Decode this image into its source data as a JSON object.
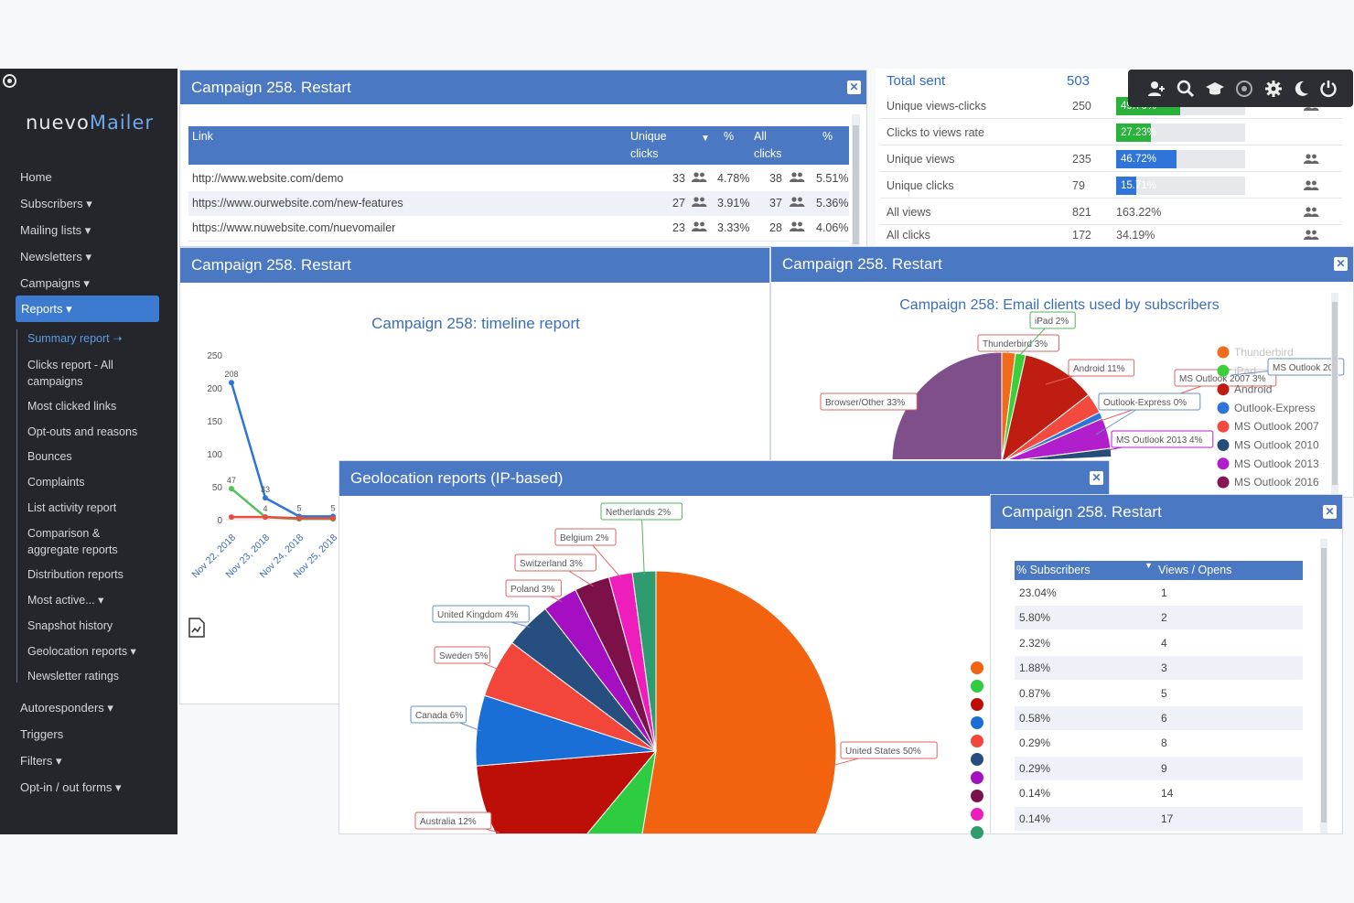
{
  "sidebar": {
    "logo_left": "nuevo",
    "logo_right": "Mailer",
    "items": [
      {
        "label": "Home"
      },
      {
        "label": "Subscribers ▾"
      },
      {
        "label": "Mailing lists ▾"
      },
      {
        "label": "Newsletters ▾"
      },
      {
        "label": "Campaigns ▾"
      }
    ],
    "reports_label": "Reports ▾",
    "subitems": [
      {
        "label": "Summary report ➝"
      },
      {
        "label": "Clicks report - All"
      },
      {
        "label": "campaigns"
      },
      {
        "label": "Most clicked links"
      },
      {
        "label": "Opt-outs and reasons"
      },
      {
        "label": "Bounces"
      },
      {
        "label": "Complaints"
      },
      {
        "label": "List activity report"
      },
      {
        "label": "Comparison &"
      },
      {
        "label": "aggregate reports"
      },
      {
        "label": "Distribution reports"
      },
      {
        "label": "Most active... ▾"
      },
      {
        "label": "Snapshot history"
      },
      {
        "label": "Geolocation reports ▾"
      },
      {
        "label": "Newsletter ratings"
      }
    ],
    "bottom_items": [
      {
        "label": "Autoresponders ▾"
      },
      {
        "label": "Triggers"
      },
      {
        "label": "Filters ▾"
      },
      {
        "label": "Opt-in / out forms ▾"
      }
    ]
  },
  "panel_links": {
    "title": "Campaign 258. Restart",
    "headers": {
      "link": "Link",
      "unique1": "Unique",
      "unique2": "clicks",
      "pct": "%",
      "all1": "All",
      "all2": "clicks",
      "pct2": "%"
    },
    "rows": [
      {
        "link": "http://www.website.com/demo",
        "unique": "33",
        "pct": "4.78%",
        "all": "38",
        "pct2": "5.51%"
      },
      {
        "link": "https://www.ourwebsite.com/new-features",
        "unique": "27",
        "pct": "3.91%",
        "all": "37",
        "pct2": "5.36%"
      },
      {
        "link": "https://www.nuwebsite.com/nuevomailer",
        "unique": "23",
        "pct": "3.33%",
        "all": "28",
        "pct2": "4.06%"
      }
    ]
  },
  "stats": {
    "total_label": "Total sent",
    "total_value": "503",
    "rows": [
      {
        "label": "Unique views-clicks",
        "value": "250",
        "bar": "49.70%",
        "fill": 0.497,
        "color": "#2ab33a"
      },
      {
        "label": "Clicks to views rate",
        "value": "",
        "bar": "27.23%",
        "fill": 0.2723,
        "color": "#2ab33a"
      },
      {
        "label": "Unique views",
        "value": "235",
        "bar": "46.72%",
        "fill": 0.4672,
        "color": "#2f74d8"
      },
      {
        "label": "Unique clicks",
        "value": "79",
        "bar": "15.71%",
        "fill": 0.1571,
        "color": "#2f74d8"
      },
      {
        "label": "All views",
        "value": "821",
        "text": "163.22%"
      },
      {
        "label": "All clicks",
        "value": "172",
        "text": "34.19%"
      }
    ]
  },
  "panel_timeline": {
    "title": "Campaign 258. Restart",
    "chart_title": "Campaign 258: timeline report"
  },
  "panel_clients": {
    "title": "Campaign 258. Restart",
    "chart_title": "Campaign 258: Email clients used by subscribers"
  },
  "panel_geo": {
    "title": "Geolocation reports (IP-based)"
  },
  "panel_dist": {
    "title": "Campaign 258. Restart",
    "col1": "% Subscribers",
    "col2": "Views / Opens",
    "rows": [
      {
        "a": "23.04%",
        "b": "1"
      },
      {
        "a": "5.80%",
        "b": "2"
      },
      {
        "a": "2.32%",
        "b": "4"
      },
      {
        "a": "1.88%",
        "b": "3"
      },
      {
        "a": "0.87%",
        "b": "5"
      },
      {
        "a": "0.58%",
        "b": "6"
      },
      {
        "a": "0.29%",
        "b": "8"
      },
      {
        "a": "0.29%",
        "b": "9"
      },
      {
        "a": "0.14%",
        "b": "14"
      },
      {
        "a": "0.14%",
        "b": "17"
      }
    ]
  },
  "chart_data": [
    {
      "type": "line",
      "title": "Campaign 258: timeline report",
      "categories": [
        "Nov 22, 2018",
        "Nov 23, 2018",
        "Nov 24, 2018",
        "Nov 25, 2018"
      ],
      "ylim": [
        0,
        250
      ],
      "yticks": [
        0,
        50,
        100,
        150,
        200,
        250
      ],
      "series": [
        {
          "values": [
            208,
            33,
            5,
            5
          ],
          "color": "#2f74d8",
          "labels": [
            "208",
            "33",
            "5",
            "5"
          ]
        },
        {
          "values": [
            47,
            4,
            1,
            1
          ],
          "color": "#53c25c",
          "labels": [
            "47",
            "4",
            "",
            ""
          ]
        },
        {
          "values": [
            4,
            4,
            2,
            2
          ],
          "color": "#e74c3c",
          "labels": [
            "",
            "",
            "",
            ""
          ]
        }
      ]
    },
    {
      "type": "pie",
      "title": "Campaign 258: Email clients used by subscribers",
      "slices": [
        {
          "label": "Browser/Other 33%",
          "value": 33,
          "color": "#7e4f8a"
        },
        {
          "label": "Thunderbird 3%",
          "value": 3,
          "color": "#f06b1a"
        },
        {
          "label": "iPad 2%",
          "value": 2,
          "color": "#3ccf3c"
        },
        {
          "label": "Android 11%",
          "value": 11,
          "color": "#c01d12"
        },
        {
          "label": "MS Outlook 2007 3%",
          "value": 3,
          "color": "#f24a3e"
        },
        {
          "label": "Outlook-Express 0%",
          "value": 0.5,
          "color": "#2f74d8"
        },
        {
          "label": "MS Outlook 2013 4%",
          "value": 4,
          "color": "#b11fcc"
        },
        {
          "label": "MS Outlook 2010",
          "value": 1,
          "color": "#264d7a"
        }
      ],
      "legend": [
        {
          "label": "Thunderbird",
          "color": "#f06b1a"
        },
        {
          "label": "iPad",
          "color": "#3ccf3c"
        },
        {
          "label": "Android",
          "color": "#c01d12"
        },
        {
          "label": "Outlook-Express",
          "color": "#2f74d8"
        },
        {
          "label": "MS Outlook 2007",
          "color": "#f24a3e"
        },
        {
          "label": "MS Outlook 2010",
          "color": "#264d7a"
        },
        {
          "label": "MS Outlook 2013",
          "color": "#b11fcc"
        },
        {
          "label": "MS Outlook 2016",
          "color": "#861552"
        }
      ],
      "extra_label": "MS Outlook 20"
    },
    {
      "type": "pie",
      "title": "Geolocation reports (IP-based)",
      "slices": [
        {
          "label": "United States 50%",
          "value": 50,
          "color": "#f2620f"
        },
        {
          "label": "",
          "value": 8,
          "color": "#2ecc40"
        },
        {
          "label": "Australia 12%",
          "value": 12,
          "color": "#bd0f08"
        },
        {
          "label": "Canada 6%",
          "value": 6,
          "color": "#1a6fd6"
        },
        {
          "label": "Sweden 5%",
          "value": 5,
          "color": "#f2463a"
        },
        {
          "label": "United Kingdom 4%",
          "value": 4,
          "color": "#264f80"
        },
        {
          "label": "Poland 3%",
          "value": 3,
          "color": "#a40fc2"
        },
        {
          "label": "Switzerland 3%",
          "value": 3,
          "color": "#7c1149"
        },
        {
          "label": "Belgium 2%",
          "value": 2,
          "color": "#ee1ebc"
        },
        {
          "label": "Netherlands 2%",
          "value": 2,
          "color": "#2e9c6e"
        }
      ]
    }
  ]
}
